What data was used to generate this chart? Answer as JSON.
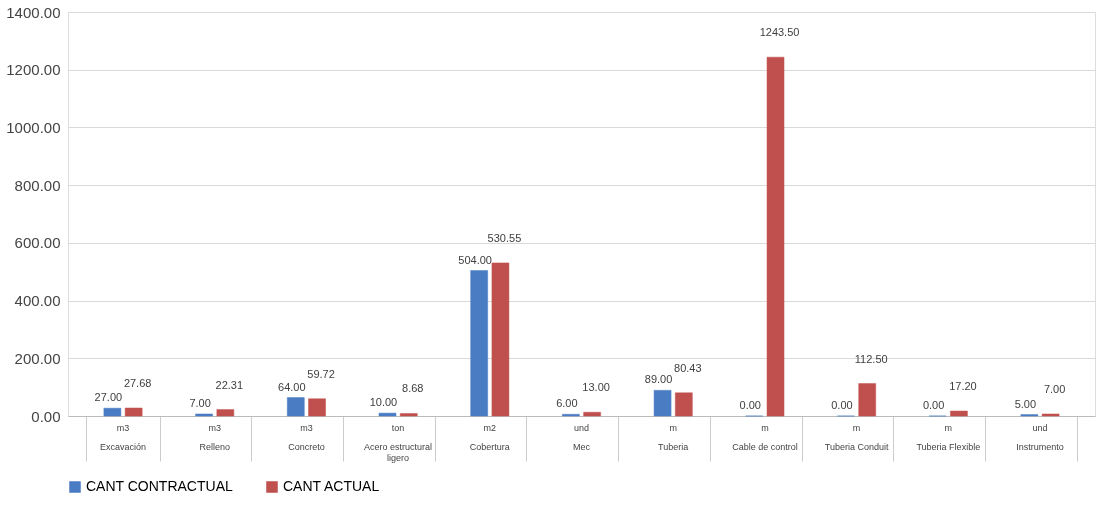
{
  "chart_data": {
    "type": "bar",
    "categories": [
      "Excavación",
      "Relleno",
      "Concreto",
      "Acero estructural ligero",
      "Cobertura",
      "Mec",
      "Tuberia",
      "Cable de control",
      "Tuberia Conduit",
      "Tuberia Flexible",
      "Instrumento"
    ],
    "series": [
      {
        "name": "CANT CONTRACTUAL",
        "color": "#4a7cc4",
        "values": [
          27,
          7,
          64,
          10,
          504,
          6,
          89,
          0,
          0,
          0,
          5
        ],
        "value_labels": [
          "27.00",
          "7.00",
          "64.00",
          "10.00",
          "504.00",
          "6.00",
          "89.00",
          "0.00",
          "0.00",
          "0.00",
          "5.00"
        ]
      },
      {
        "name": "CANT ACTUAL",
        "color": "#c0504d",
        "values": [
          27.68,
          22.31,
          59.72,
          8.68,
          530.55,
          13,
          80.43,
          1243.5,
          112.5,
          17.2,
          7
        ],
        "value_labels": [
          "27.68",
          "22.31",
          "59.72",
          "8.68",
          "530.55",
          "13.00",
          "80.43",
          "1243.50",
          "112.50",
          "17.20",
          "7.00"
        ]
      }
    ],
    "annotations": [
      "m3",
      "m3",
      "m3",
      "ton",
      "m2",
      "und",
      "m",
      "m",
      "m",
      "m",
      "und"
    ],
    "ylim": [
      0,
      1400
    ],
    "yticks": [
      {
        "value": 0,
        "label": "0.00"
      },
      {
        "value": 200,
        "label": "200.00"
      },
      {
        "value": 400,
        "label": "400.00"
      },
      {
        "value": 600,
        "label": "600.00"
      },
      {
        "value": 800,
        "label": "800.00"
      },
      {
        "value": 1000,
        "label": "1000.00"
      },
      {
        "value": 1200,
        "label": "1200.00"
      },
      {
        "value": 1400,
        "label": "1400.00"
      }
    ],
    "grid": "y",
    "legend": "bottom"
  }
}
